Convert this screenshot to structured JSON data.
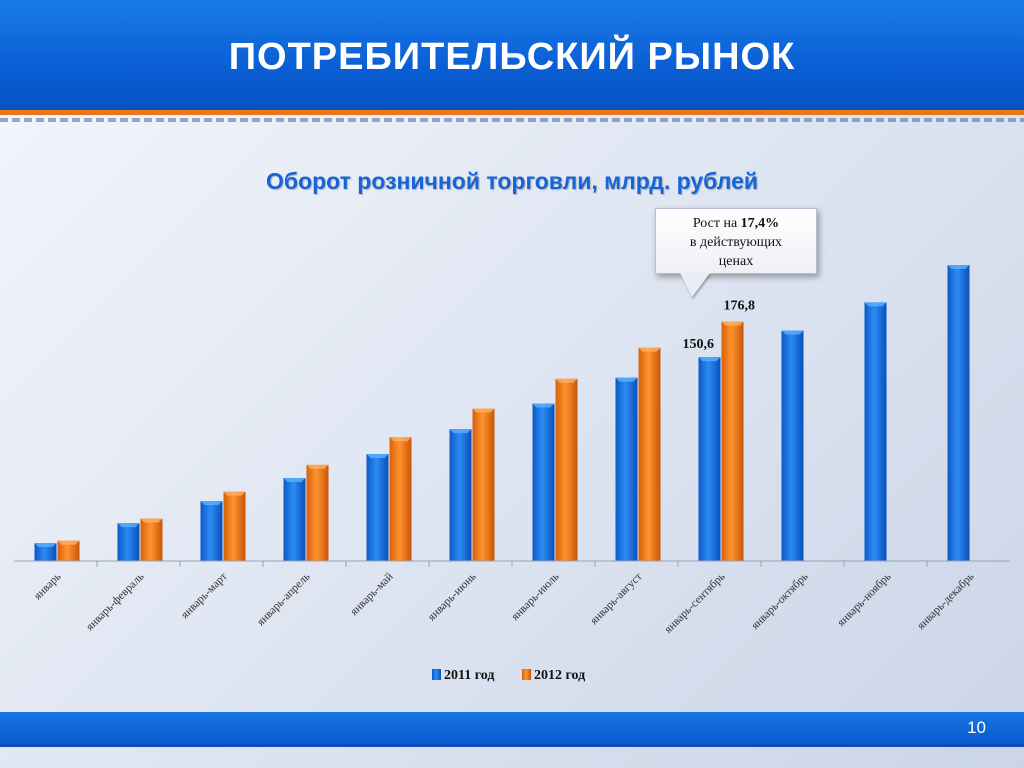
{
  "header": {
    "title": "ПОТРЕБИТЕЛЬСКИЙ РЫНОК"
  },
  "callout": {
    "line1_prefix": "Рост на ",
    "line1_value": "17,4%",
    "line2": "в действующих",
    "line3": "ценах"
  },
  "footer": {
    "page_number": "10"
  },
  "colors": {
    "blue": "#1a7be8",
    "orange": "#f07a18",
    "accent": "#1565d8"
  },
  "chart_data": {
    "type": "bar",
    "title": "Оборот розничной торговли, млрд. рублей",
    "categories": [
      "январь",
      "январь-февраль",
      "январь-март",
      "январь-апрель",
      "январь-май",
      "январь-июнь",
      "январь-июль",
      "январь-август",
      "январь-сентябрь",
      "январь-октябрь",
      "январь-ноябрь",
      "январь-декабрь"
    ],
    "series": [
      {
        "name": "2011 год",
        "values": [
          13.3,
          28.0,
          44.2,
          61.3,
          79.0,
          97.4,
          116.3,
          135.4,
          150.6,
          170.2,
          191.0,
          218.6
        ]
      },
      {
        "name": "2012 год",
        "values": [
          15.0,
          31.3,
          51.2,
          71.0,
          91.5,
          112.5,
          134.6,
          157.5,
          176.8,
          null,
          null,
          null
        ]
      }
    ],
    "data_labels": [
      {
        "series": 0,
        "index": 8,
        "text": "150,6"
      },
      {
        "series": 1,
        "index": 8,
        "text": "176,8"
      }
    ],
    "legend_position": "bottom",
    "ylim": [
      0,
      230
    ]
  }
}
